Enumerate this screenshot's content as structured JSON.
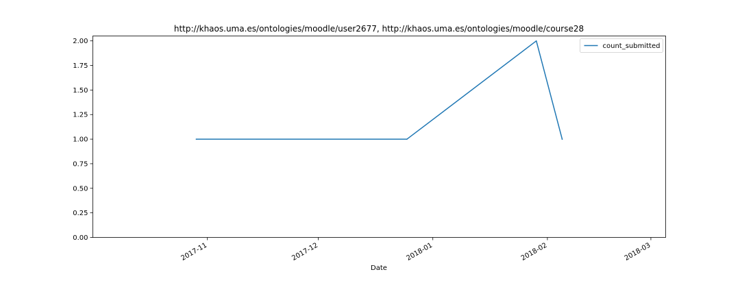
{
  "chart_data": {
    "type": "line",
    "title": "http://khaos.uma.es/ontologies/moodle/user2677, http://khaos.uma.es/ontologies/moodle/course28",
    "xlabel": "Date",
    "ylabel": "",
    "x_type": "date",
    "xlim": [
      "2017-10-01",
      "2018-03-05"
    ],
    "ylim": [
      0,
      2.05
    ],
    "x_ticks": [
      "2017-11-01",
      "2017-12-01",
      "2018-01-01",
      "2018-02-01",
      "2018-03-01"
    ],
    "x_tick_labels": [
      "2017-11",
      "2017-12",
      "2018-01",
      "2018-02",
      "2018-03"
    ],
    "y_ticks": [
      0,
      0.25,
      0.5,
      0.75,
      1.0,
      1.25,
      1.5,
      1.75,
      2.0
    ],
    "y_tick_labels": [
      "0.00",
      "0.25",
      "0.50",
      "0.75",
      "1.00",
      "1.25",
      "1.50",
      "1.75",
      "2.00"
    ],
    "grid": false,
    "legend_position": "top-right",
    "series": [
      {
        "name": "count_submitted",
        "color": "#1f77b4",
        "points": [
          {
            "x": "2017-10-29",
            "y": 1
          },
          {
            "x": "2017-12-25",
            "y": 1
          },
          {
            "x": "2018-01-29",
            "y": 2
          },
          {
            "x": "2018-02-05",
            "y": 1
          }
        ]
      }
    ]
  }
}
